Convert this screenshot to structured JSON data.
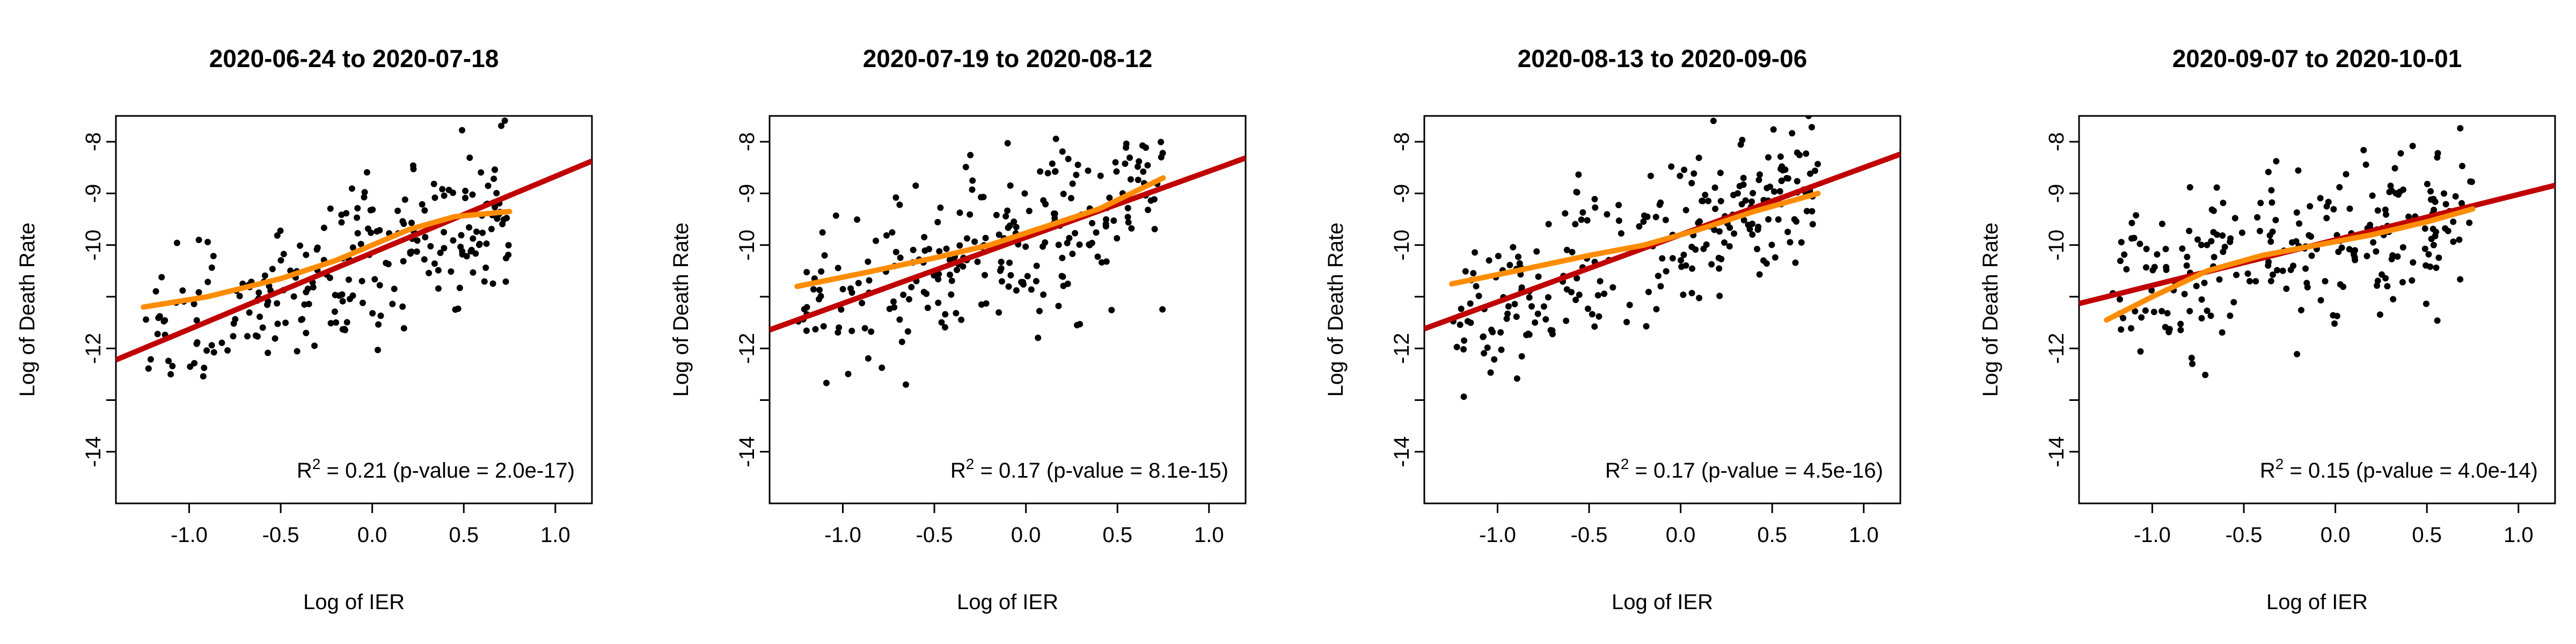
{
  "chart_data": [
    {
      "type": "scatter",
      "title": "2020-06-24 to 2020-07-18",
      "xlabel": "Log of IER",
      "ylabel": "Log of Death Rate",
      "xlim": [
        -1.4,
        1.2
      ],
      "ylim": [
        -15,
        -7.5
      ],
      "x_ticks": [
        "-1.0",
        "-0.5",
        "0.0",
        "0.5",
        "1.0"
      ],
      "y_ticks": [
        "-8",
        "-9",
        "-10",
        "-11",
        "-12",
        "-13",
        "-14"
      ],
      "y_tick_labels_shown": [
        "-8",
        "-9",
        "-10",
        "-12",
        "-14"
      ],
      "fit_line": {
        "intercept": -10.15,
        "slope": 1.48,
        "color": "#c00000"
      },
      "smooth_line": {
        "color": "#ff8c00",
        "points": [
          [
            -1.25,
            -11.2
          ],
          [
            -0.9,
            -11.0
          ],
          [
            -0.5,
            -10.65
          ],
          [
            -0.2,
            -10.3
          ],
          [
            0.0,
            -10.0
          ],
          [
            0.2,
            -9.7
          ],
          [
            0.45,
            -9.45
          ],
          [
            0.75,
            -9.35
          ]
        ]
      },
      "annotation": {
        "r2_label": "R",
        "r2_superscript": "2",
        "r2_value": " = 0.21 (p-value = 2.0e-17)"
      },
      "points": {
        "seed": 11,
        "n": 240,
        "slope": 1.48,
        "intercept": -10.15,
        "noise_sd": 0.9,
        "ymin": -13.3,
        "ymax": -7.4
      }
    },
    {
      "type": "scatter",
      "title": "2020-07-19 to 2020-08-12",
      "xlabel": "Log of IER",
      "ylabel": "Log of Death Rate",
      "xlim": [
        -1.4,
        1.2
      ],
      "ylim": [
        -15,
        -7.5
      ],
      "x_ticks": [
        "-1.0",
        "-0.5",
        "0.0",
        "0.5",
        "1.0"
      ],
      "y_ticks": [
        "-8",
        "-9",
        "-10",
        "-11",
        "-12",
        "-13",
        "-14"
      ],
      "y_tick_labels_shown": [
        "-8",
        "-9",
        "-10",
        "-12",
        "-14"
      ],
      "fit_line": {
        "intercept": -9.85,
        "slope": 1.28,
        "color": "#c00000"
      },
      "smooth_line": {
        "color": "#ff8c00",
        "points": [
          [
            -1.25,
            -10.8
          ],
          [
            -0.9,
            -10.55
          ],
          [
            -0.5,
            -10.25
          ],
          [
            -0.2,
            -10.0
          ],
          [
            0.1,
            -9.65
          ],
          [
            0.4,
            -9.3
          ],
          [
            0.75,
            -8.7
          ]
        ]
      },
      "annotation": {
        "r2_label": "R",
        "r2_superscript": "2",
        "r2_value": " = 0.17 (p-value = 8.1e-15)"
      },
      "points": {
        "seed": 23,
        "n": 240,
        "slope": 1.28,
        "intercept": -9.85,
        "noise_sd": 0.95,
        "ymin": -12.7,
        "ymax": -7.1
      }
    },
    {
      "type": "scatter",
      "title": "2020-08-13 to 2020-09-06",
      "xlabel": "Log of IER",
      "ylabel": "Log of Death Rate",
      "xlim": [
        -1.4,
        1.2
      ],
      "ylim": [
        -15,
        -7.5
      ],
      "x_ticks": [
        "-1.0",
        "-0.5",
        "0.0",
        "0.5",
        "1.0"
      ],
      "y_ticks": [
        "-8",
        "-9",
        "-10",
        "-11",
        "-12",
        "-13",
        "-14"
      ],
      "y_tick_labels_shown": [
        "-8",
        "-9",
        "-10",
        "-12",
        "-14"
      ],
      "fit_line": {
        "intercept": -9.8,
        "slope": 1.3,
        "color": "#c00000"
      },
      "smooth_line": {
        "color": "#ff8c00",
        "points": [
          [
            -1.25,
            -10.75
          ],
          [
            -0.9,
            -10.5
          ],
          [
            -0.5,
            -10.2
          ],
          [
            -0.2,
            -10.0
          ],
          [
            0.1,
            -9.7
          ],
          [
            0.4,
            -9.35
          ],
          [
            0.75,
            -9.0
          ]
        ]
      },
      "annotation": {
        "r2_label": "R",
        "r2_superscript": "2",
        "r2_value": " = 0.17 (p-value = 4.5e-16)"
      },
      "points": {
        "seed": 37,
        "n": 240,
        "slope": 1.3,
        "intercept": -9.8,
        "noise_sd": 0.9,
        "ymin": -13.0,
        "ymax": -7.5
      }
    },
    {
      "type": "scatter",
      "title": "2020-09-07 to 2020-10-01",
      "xlabel": "Log of IER",
      "ylabel": "Log of Death Rate",
      "xlim": [
        -1.4,
        1.2
      ],
      "ylim": [
        -15,
        -7.5
      ],
      "x_ticks": [
        "-1.0",
        "-0.5",
        "0.0",
        "0.5",
        "1.0"
      ],
      "y_ticks": [
        "-8",
        "-9",
        "-10",
        "-11",
        "-12",
        "-13",
        "-14"
      ],
      "y_tick_labels_shown": [
        "-8",
        "-9",
        "-10",
        "-12",
        "-14"
      ],
      "fit_line": {
        "intercept": -9.9,
        "slope": 0.88,
        "color": "#c00000"
      },
      "smooth_line": {
        "color": "#ff8c00",
        "points": [
          [
            -1.25,
            -11.45
          ],
          [
            -1.0,
            -11.0
          ],
          [
            -0.7,
            -10.5
          ],
          [
            -0.4,
            -10.2
          ],
          [
            -0.1,
            -10.0
          ],
          [
            0.2,
            -9.8
          ],
          [
            0.5,
            -9.55
          ],
          [
            0.75,
            -9.3
          ]
        ]
      },
      "annotation": {
        "r2_label": "R",
        "r2_superscript": "2",
        "r2_value": " = 0.15 (p-value = 4.0e-14)"
      },
      "points": {
        "seed": 53,
        "n": 240,
        "slope": 0.88,
        "intercept": -9.9,
        "noise_sd": 0.95,
        "ymin": -13.1,
        "ymax": -7.5
      }
    }
  ]
}
